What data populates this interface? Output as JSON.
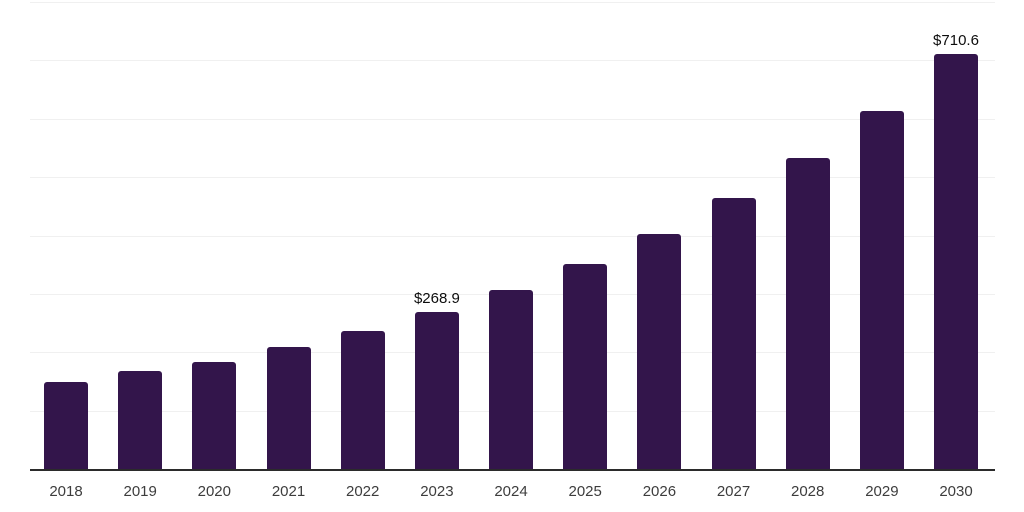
{
  "chart_data": {
    "type": "bar",
    "title": "",
    "xlabel": "",
    "ylabel": "",
    "categories": [
      "2018",
      "2019",
      "2020",
      "2021",
      "2022",
      "2023",
      "2024",
      "2025",
      "2026",
      "2027",
      "2028",
      "2029",
      "2030"
    ],
    "values": [
      149.5,
      168.0,
      183.5,
      209.0,
      236.5,
      268.9,
      307.5,
      351.5,
      402.0,
      463.5,
      533.5,
      613.5,
      710.6
    ],
    "bar_labels": [
      "",
      "",
      "",
      "",
      "",
      "$268.9",
      "",
      "",
      "",
      "",
      "",
      "",
      "$710.6"
    ],
    "ylim": [
      0,
      800
    ],
    "gridline_step": 100,
    "grid": "horizontal",
    "y_tick_labels_visible": false,
    "legend": "none",
    "colors": {
      "bar": "#33154b",
      "gridline": "#f0f0f0",
      "axis_line": "#2b2b2b",
      "data_label": "#0d0d0d",
      "tick_label": "#3d3d3d",
      "background": "#ffffff"
    }
  }
}
